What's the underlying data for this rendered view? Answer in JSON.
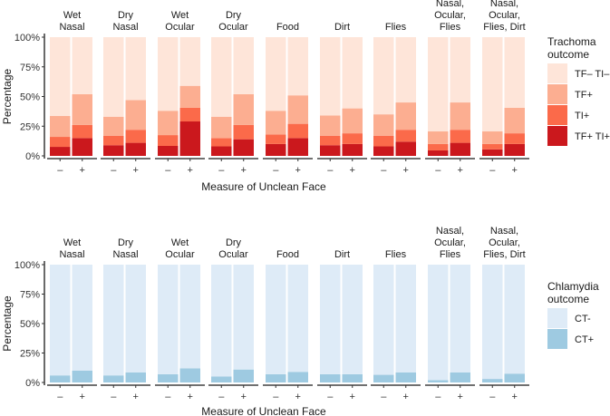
{
  "chart_data": [
    {
      "type": "bar",
      "subtype": "stacked-faceted",
      "title": "",
      "xlabel": "Measure of Unclean Face",
      "ylabel": "Percentage",
      "ylim": [
        0,
        100
      ],
      "yticks": [
        "0%",
        "25%",
        "50%",
        "75%",
        "100%"
      ],
      "categories": [
        "–",
        "+"
      ],
      "facets": [
        {
          "label": [
            "Wet",
            "Nasal"
          ]
        },
        {
          "label": [
            "Dry",
            "Nasal"
          ]
        },
        {
          "label": [
            "Wet",
            "Ocular"
          ]
        },
        {
          "label": [
            "Dry",
            "Ocular"
          ]
        },
        {
          "label": [
            "Food"
          ]
        },
        {
          "label": [
            "Dirt"
          ]
        },
        {
          "label": [
            "Flies"
          ]
        },
        {
          "label": [
            "Nasal,",
            "Ocular,",
            "Flies"
          ]
        },
        {
          "label": [
            "Nasal,",
            "Ocular,",
            "Flies, Dirt"
          ]
        }
      ],
      "legend": {
        "title": [
          "Trachoma",
          "outcome"
        ],
        "position": "right"
      },
      "series": [
        {
          "name": "TF+ TI+",
          "color": "#cb181d",
          "values": [
            [
              7.6,
              15
            ],
            [
              9,
              11
            ],
            [
              8.4,
              29
            ],
            [
              8,
              14
            ],
            [
              10,
              15
            ],
            [
              9,
              10
            ],
            [
              8,
              12
            ],
            [
              4.6,
              11
            ],
            [
              5.5,
              10
            ]
          ]
        },
        {
          "name": "TI+",
          "color": "#fb6a4a",
          "values": [
            [
              8.4,
              11
            ],
            [
              8,
              11
            ],
            [
              9.1,
              11.5
            ],
            [
              7,
              12
            ],
            [
              8,
              12
            ],
            [
              8,
              9
            ],
            [
              9,
              10
            ],
            [
              5.4,
              11
            ],
            [
              4.5,
              9
            ]
          ]
        },
        {
          "name": "TF+",
          "color": "#fcae91",
          "values": [
            [
              17.6,
              26
            ],
            [
              16,
              25
            ],
            [
              20.5,
              18.5
            ],
            [
              18,
              26
            ],
            [
              20,
              24
            ],
            [
              17,
              21
            ],
            [
              18,
              23
            ],
            [
              10.6,
              23
            ],
            [
              10.6,
              21.5
            ]
          ]
        },
        {
          "name": "TF– TI–",
          "color": "#fee5d9",
          "values": [
            [
              66.4,
              48
            ],
            [
              67,
              53
            ],
            [
              62,
              41
            ],
            [
              67,
              48
            ],
            [
              62,
              49
            ],
            [
              66,
              60
            ],
            [
              65,
              55
            ],
            [
              79.4,
              55
            ],
            [
              79.4,
              59.5
            ]
          ]
        }
      ]
    },
    {
      "type": "bar",
      "subtype": "stacked-faceted",
      "title": "",
      "xlabel": "Measure of Unclean Face",
      "ylabel": "Percentage",
      "ylim": [
        0,
        100
      ],
      "yticks": [
        "0%",
        "25%",
        "50%",
        "75%",
        "100%"
      ],
      "categories": [
        "–",
        "+"
      ],
      "facets": [
        {
          "label": [
            "Wet",
            "Nasal"
          ]
        },
        {
          "label": [
            "Dry",
            "Nasal"
          ]
        },
        {
          "label": [
            "Wet",
            "Ocular"
          ]
        },
        {
          "label": [
            "Dry",
            "Ocular"
          ]
        },
        {
          "label": [
            "Food"
          ]
        },
        {
          "label": [
            "Dirt"
          ]
        },
        {
          "label": [
            "Flies"
          ]
        },
        {
          "label": [
            "Nasal,",
            "Ocular,",
            "Flies"
          ]
        },
        {
          "label": [
            "Nasal,",
            "Ocular,",
            "Flies, Dirt"
          ]
        }
      ],
      "legend": {
        "title": [
          "Chlamydia",
          "outcome"
        ],
        "position": "right"
      },
      "series": [
        {
          "name": "CT+",
          "color": "#9ecae1",
          "values": [
            [
              6,
              10
            ],
            [
              6,
              8.5
            ],
            [
              7,
              12
            ],
            [
              5,
              11
            ],
            [
              7,
              9
            ],
            [
              7,
              7
            ],
            [
              6.5,
              8.5
            ],
            [
              2,
              8.5
            ],
            [
              3,
              7.5
            ]
          ]
        },
        {
          "name": "CT-",
          "color": "#deebf7",
          "values": [
            [
              94,
              90
            ],
            [
              94,
              91.5
            ],
            [
              93,
              88
            ],
            [
              95,
              89
            ],
            [
              93,
              91
            ],
            [
              93,
              93
            ],
            [
              93.5,
              91.5
            ],
            [
              98,
              91.5
            ],
            [
              97,
              92.5
            ]
          ]
        }
      ]
    }
  ]
}
